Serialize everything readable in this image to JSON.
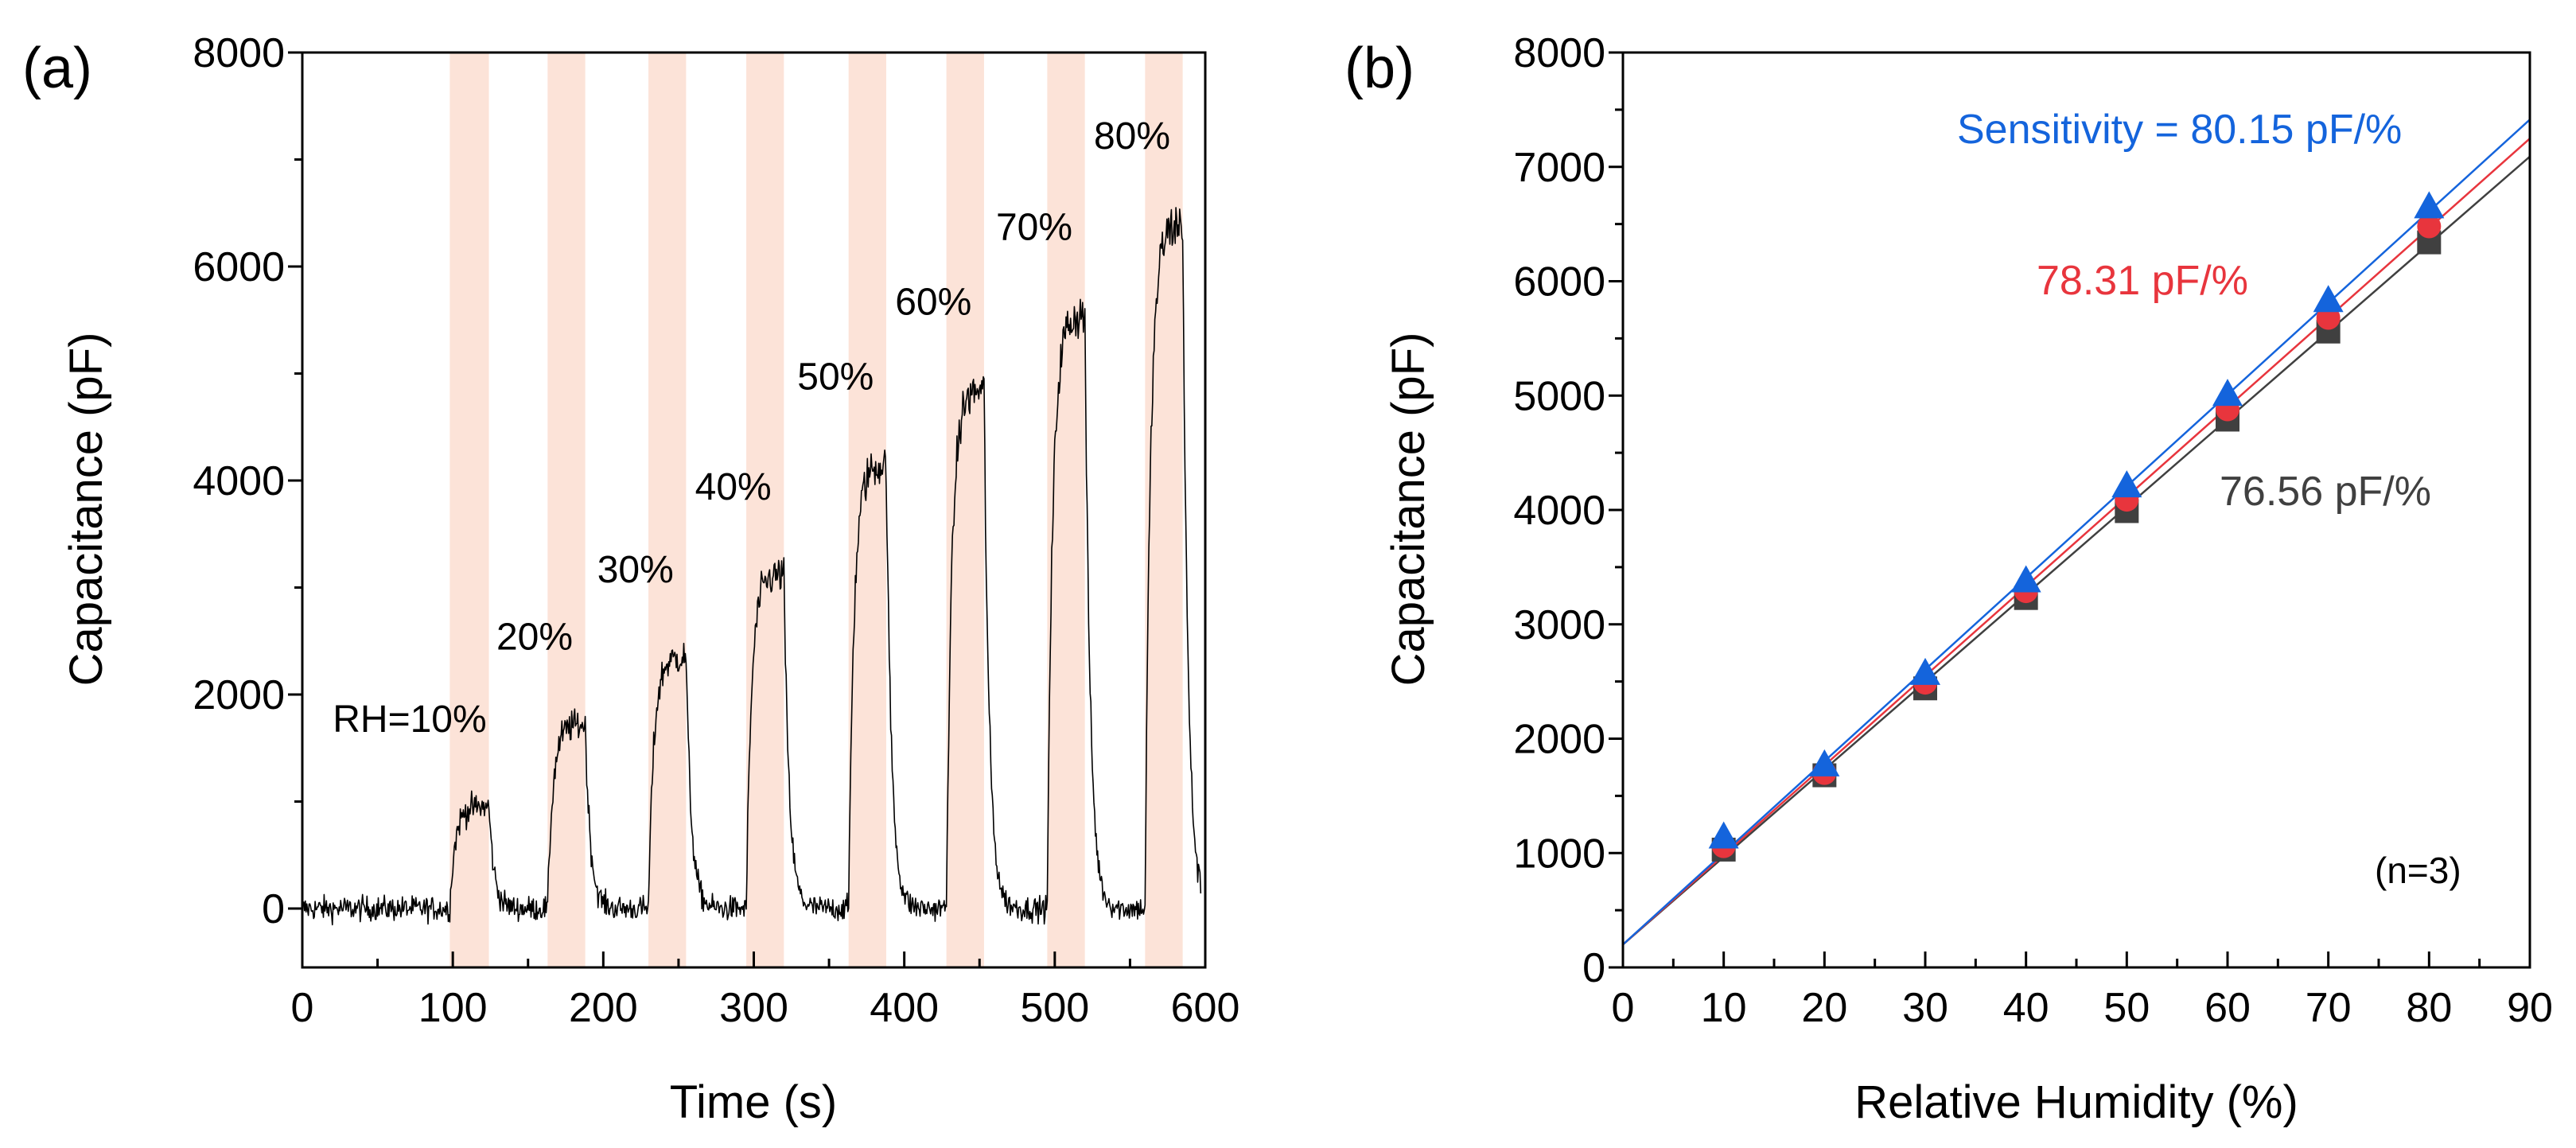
{
  "chart_data": [
    {
      "panel": "(a)",
      "type": "line",
      "xlabel": "Time (s)",
      "ylabel": "Capacitance (pF)",
      "xlim": [
        0,
        600
      ],
      "ylim": [
        -550,
        8000
      ],
      "x_ticks": [
        0,
        100,
        200,
        300,
        400,
        500,
        600
      ],
      "y_ticks": [
        0,
        2000,
        4000,
        6000,
        8000
      ],
      "x_tick_labels": [
        "0",
        "100",
        "200",
        "300",
        "400",
        "500",
        "600"
      ],
      "y_tick_labels": [
        "0",
        "2000",
        "4000",
        "6000",
        "8000"
      ],
      "shaded_regions_s": [
        [
          98,
          124
        ],
        [
          163,
          188
        ],
        [
          230,
          255
        ],
        [
          295,
          320
        ],
        [
          363,
          388
        ],
        [
          428,
          453
        ],
        [
          495,
          520
        ],
        [
          560,
          585
        ]
      ],
      "shade_color": "#fce3d8",
      "line_color": "#000000",
      "baseline_pF": 0,
      "noise_pF": 110,
      "steps": [
        {
          "start_s": 98,
          "end_s": 124,
          "level_pF": 950,
          "label": "RH=10%"
        },
        {
          "start_s": 163,
          "end_s": 188,
          "level_pF": 1720,
          "label": "20%"
        },
        {
          "start_s": 230,
          "end_s": 255,
          "level_pF": 2350,
          "label": "30%"
        },
        {
          "start_s": 295,
          "end_s": 320,
          "level_pF": 3120,
          "label": "40%"
        },
        {
          "start_s": 363,
          "end_s": 388,
          "level_pF": 4150,
          "label": "50%"
        },
        {
          "start_s": 428,
          "end_s": 453,
          "level_pF": 4850,
          "label": "60%"
        },
        {
          "start_s": 495,
          "end_s": 520,
          "level_pF": 5550,
          "label": "70%"
        },
        {
          "start_s": 560,
          "end_s": 585,
          "level_pF": 6400,
          "label": "80%"
        }
      ]
    },
    {
      "panel": "(b)",
      "type": "scatter",
      "xlabel": "Relative Humidity (%)",
      "ylabel": "Capacitance (pF)",
      "xlim": [
        0,
        90
      ],
      "ylim": [
        0,
        8000
      ],
      "x_ticks": [
        0,
        10,
        20,
        30,
        40,
        50,
        60,
        70,
        80,
        90
      ],
      "y_ticks": [
        0,
        1000,
        2000,
        3000,
        4000,
        5000,
        6000,
        7000,
        8000
      ],
      "x_tick_labels": [
        "0",
        "10",
        "20",
        "30",
        "40",
        "50",
        "60",
        "70",
        "80",
        "90"
      ],
      "y_tick_labels": [
        "0",
        "1000",
        "2000",
        "3000",
        "4000",
        "5000",
        "6000",
        "7000",
        "8000"
      ],
      "x": [
        10,
        20,
        30,
        40,
        50,
        60,
        70,
        80
      ],
      "series": [
        {
          "name": "76.56 pF/%",
          "marker": "square",
          "color": "#404040",
          "values": [
            1030,
            1680,
            2440,
            3230,
            3990,
            4790,
            5560,
            6340
          ],
          "fit": {
            "slope": 76.56,
            "intercept": 200
          }
        },
        {
          "name": "78.31 pF/%",
          "marker": "circle",
          "color": "#e8353d",
          "values": [
            1060,
            1700,
            2490,
            3290,
            4090,
            4880,
            5680,
            6480
          ],
          "fit": {
            "slope": 78.31,
            "intercept": 200
          }
        },
        {
          "name": "Sensitivity = 80.15 pF/%",
          "marker": "triangle",
          "color": "#1464dc",
          "values": [
            1130,
            1760,
            2560,
            3370,
            4200,
            5000,
            5820,
            6640
          ],
          "fit": {
            "slope": 80.15,
            "intercept": 200
          }
        }
      ],
      "annotations": {
        "blue": "Sensitivity = 80.15 pF/%",
        "red": "78.31 pF/%",
        "gray": "76.56 pF/%",
        "n": "(n=3)"
      }
    }
  ]
}
